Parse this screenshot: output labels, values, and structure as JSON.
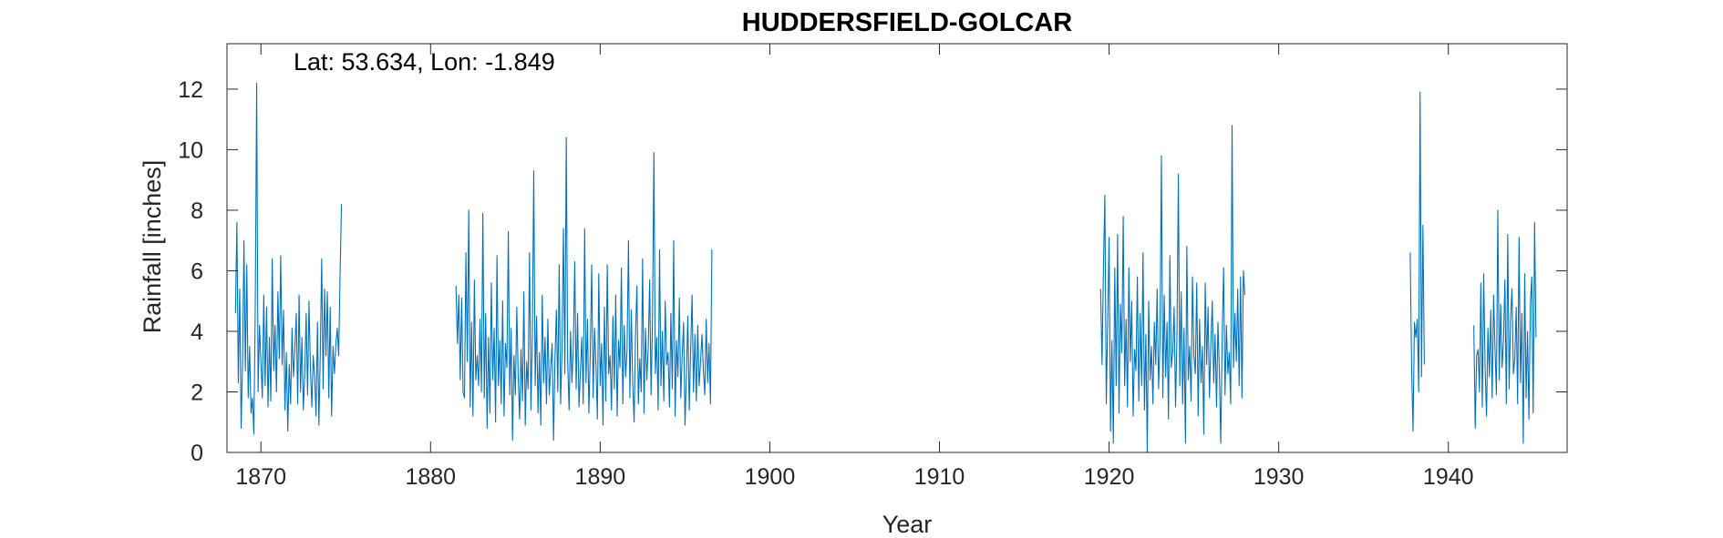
{
  "chart_data": {
    "type": "line",
    "title": "HUDDERSFIELD-GOLCAR",
    "annotation": "Lat: 53.634, Lon: -1.849",
    "xlabel": "Year",
    "ylabel": "Rainfall [inches]",
    "xlim": [
      1868,
      1947
    ],
    "ylim": [
      0,
      13.5
    ],
    "xticks": [
      1870,
      1880,
      1890,
      1900,
      1910,
      1920,
      1930,
      1940
    ],
    "yticks": [
      0,
      2,
      4,
      6,
      8,
      10,
      12
    ],
    "grid": false,
    "series": [
      {
        "color": "#0072BD",
        "segments": [
          {
            "start": 1868.5,
            "values": [
              4.6,
              7.6,
              2.3,
              5.4,
              0.8,
              3.0,
              7.0,
              2.7,
              6.2,
              1.8,
              3.5,
              1.3,
              1.8,
              0.6,
              4.8,
              12.2,
              2.0,
              4.2,
              3.0,
              1.8,
              5.2,
              2.2,
              4.8,
              1.5,
              3.8,
              1.7,
              6.4,
              2.7,
              4.2,
              2.0,
              5.3,
              3.1,
              6.5,
              2.9,
              4.7,
              1.4,
              3.3,
              0.7,
              2.9,
              1.6,
              4.1,
              2.5,
              3.4,
              4.6,
              1.6,
              5.2,
              2.0,
              3.8,
              1.4,
              2.6,
              4.6,
              1.9,
              5.0,
              2.8,
              1.5,
              3.2,
              2.5,
              1.2,
              4.3,
              0.9,
              3.3,
              6.4,
              2.1,
              5.4,
              3.2,
              5.3,
              1.8,
              4.8,
              1.2,
              3.5,
              2.6,
              3.6,
              4.1,
              3.2,
              5.9,
              8.2
            ]
          },
          {
            "start": 1881.5,
            "values": [
              5.5,
              3.6,
              5.2,
              2.4,
              5.1,
              2.0,
              1.8,
              6.6,
              3.0,
              8.0,
              1.5,
              4.3,
              1.2,
              5.7,
              2.4,
              3.2,
              2.2,
              4.4,
              2.0,
              7.9,
              1.8,
              4.6,
              0.8,
              3.8,
              1.3,
              5.6,
              2.4,
              4.1,
              1.0,
              6.5,
              2.2,
              3.7,
              1.6,
              5.0,
              1.2,
              3.6,
              2.8,
              7.3,
              1.9,
              4.1,
              0.4,
              3.2,
              1.9,
              4.8,
              2.5,
              1.1,
              3.4,
              1.7,
              5.3,
              0.9,
              3.0,
              2.1,
              6.6,
              1.4,
              3.9,
              9.3,
              2.2,
              4.5,
              1.3,
              3.3,
              0.9,
              5.2,
              2.3,
              3.8,
              1.6,
              4.4,
              1.9,
              2.8,
              3.6,
              0.4,
              3.1,
              4.7,
              2.0,
              6.2,
              1.6,
              3.4,
              7.4,
              2.6,
              10.4,
              3.0,
              1.4,
              4.0,
              2.3,
              3.5,
              6.3,
              2.1,
              4.6,
              1.5,
              2.7,
              3.8,
              1.6,
              7.4,
              2.3,
              4.4,
              1.3,
              3.3,
              6.2,
              1.8,
              4.1,
              2.9,
              1.1,
              5.9,
              2.2,
              3.6,
              0.9,
              4.8,
              1.7,
              6.2,
              2.6,
              3.2,
              1.4,
              4.5,
              2.1,
              5.2,
              1.2,
              3.7,
              2.8,
              6.1,
              1.6,
              4.2,
              2.5,
              3.4,
              7.0,
              1.8,
              4.7,
              2.3,
              1.0,
              3.9,
              5.5,
              1.6,
              3.1,
              2.0,
              6.4,
              1.3,
              4.1,
              2.4,
              3.5,
              5.7,
              1.9,
              4.4,
              9.9,
              2.6,
              3.8,
              1.4,
              6.7,
              2.2,
              4.0,
              1.7,
              5.0,
              2.9,
              3.3,
              1.5,
              4.6,
              2.1,
              7.0,
              1.2,
              3.7,
              2.5,
              5.1,
              1.8,
              3.2,
              4.3,
              0.9,
              2.6,
              4.5,
              1.4,
              3.4,
              5.2,
              2.0,
              3.9,
              1.7,
              4.2,
              2.2,
              3.0,
              3.9,
              2.7,
              1.9,
              4.4,
              2.3,
              3.6,
              1.6,
              6.7
            ]
          },
          {
            "start": 1919.5,
            "values": [
              5.4,
              2.9,
              6.1,
              8.5,
              1.6,
              4.3,
              7.1,
              0.7,
              3.7,
              0.3,
              6.1,
              2.2,
              7.2,
              1.3,
              4.9,
              3.3,
              7.8,
              2.2,
              4.4,
              1.5,
              6.1,
              3.0,
              5.0,
              1.2,
              3.4,
              2.7,
              5.8,
              1.7,
              4.6,
              2.2,
              6.6,
              1.4,
              3.9,
              0.0,
              5.0,
              2.4,
              3.5,
              1.6,
              4.3,
              2.9,
              5.4,
              2.1,
              3.7,
              9.8,
              1.8,
              5.2,
              2.5,
              4.3,
              1.1,
              6.5,
              2.8,
              3.3,
              4.8,
              1.5,
              3.8,
              9.2,
              2.2,
              5.3,
              1.6,
              4.1,
              0.3,
              6.8,
              2.4,
              3.5,
              1.7,
              5.8,
              3.2,
              2.6,
              5.6,
              1.2,
              4.4,
              2.3,
              3.5,
              0.6,
              5.6,
              2.9,
              4.8,
              1.8,
              3.6,
              5.0,
              2.3,
              3.9,
              1.5,
              4.3,
              2.7,
              0.3,
              3.8,
              6.1,
              1.9,
              4.2,
              2.6,
              3.3,
              1.6,
              10.8,
              2.8,
              4.6,
              3.0,
              5.4,
              2.2,
              5.8,
              1.8,
              6.0,
              5.2
            ]
          },
          {
            "start": 1937.75,
            "values": [
              6.6,
              2.8,
              0.7,
              4.3,
              3.8,
              4.4,
              2.0,
              11.9,
              2.5,
              7.5,
              2.9
            ]
          },
          {
            "start": 1941.5,
            "values": [
              4.2,
              0.8,
              3.2,
              3.4,
              2.0,
              5.6,
              1.5,
              5.9,
              2.8,
              1.2,
              4.1,
              2.5,
              4.7,
              1.8,
              5.2,
              3.4,
              1.9,
              8.0,
              2.4,
              4.9,
              2.8,
              3.7,
              5.7,
              1.6,
              7.2,
              2.1,
              4.4,
              5.4,
              2.6,
              3.1,
              4.8,
              1.6,
              7.1,
              2.3,
              4.6,
              0.3,
              5.9,
              1.8,
              4.0,
              1.1,
              4.9,
              5.8,
              1.3,
              7.6,
              3.8
            ]
          }
        ]
      }
    ]
  }
}
